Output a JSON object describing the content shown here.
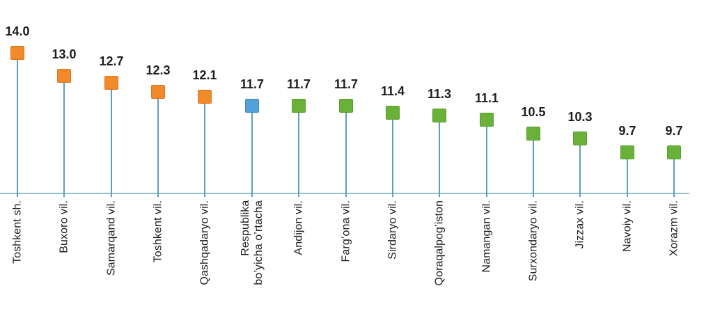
{
  "chart_data": {
    "type": "lollipop-bar",
    "categories": [
      "Toshkent sh.",
      "Buxoro vil.",
      "Samarqand vil.",
      "Toshkent vil.",
      "Qashqadaryo vil.",
      "Respublika\nbo’yicha o’rtacha",
      "Andijon vil.",
      "Farg’ona vil.",
      "Sirdaryo vil.",
      "Qoraqalpog’iston",
      "Namangan vil.",
      "Surxondaryo vil.",
      "Jizzax vil.",
      "Navoiy vil.",
      "Xorazm vil."
    ],
    "values": [
      14.0,
      13.0,
      12.7,
      12.3,
      12.1,
      11.7,
      11.7,
      11.7,
      11.4,
      11.3,
      11.1,
      10.5,
      10.3,
      9.7,
      9.7
    ],
    "value_labels": [
      "14.0",
      "13.0",
      "12.7",
      "12.3",
      "12.1",
      "11.7",
      "11.7",
      "11.7",
      "11.4",
      "11.3",
      "11.1",
      "10.5",
      "10.3",
      "9.7",
      "9.7"
    ],
    "marker_colors": [
      "orange",
      "orange",
      "orange",
      "orange",
      "orange",
      "blue",
      "green",
      "green",
      "green",
      "green",
      "green",
      "green",
      "green",
      "green",
      "green"
    ],
    "palette": {
      "orange": {
        "fill": "#F08A2B",
        "border": "#E0741D"
      },
      "blue": {
        "fill": "#54A1DC",
        "border": "#3F88C4"
      },
      "green": {
        "fill": "#6AB13A",
        "border": "#589D2A"
      }
    },
    "stem_color": "#5C9FC0",
    "axis_color": "#90BFCF",
    "text_color": "#1D1D1D",
    "legend": "none",
    "grid": "off",
    "category_labels_rotated": true
  }
}
